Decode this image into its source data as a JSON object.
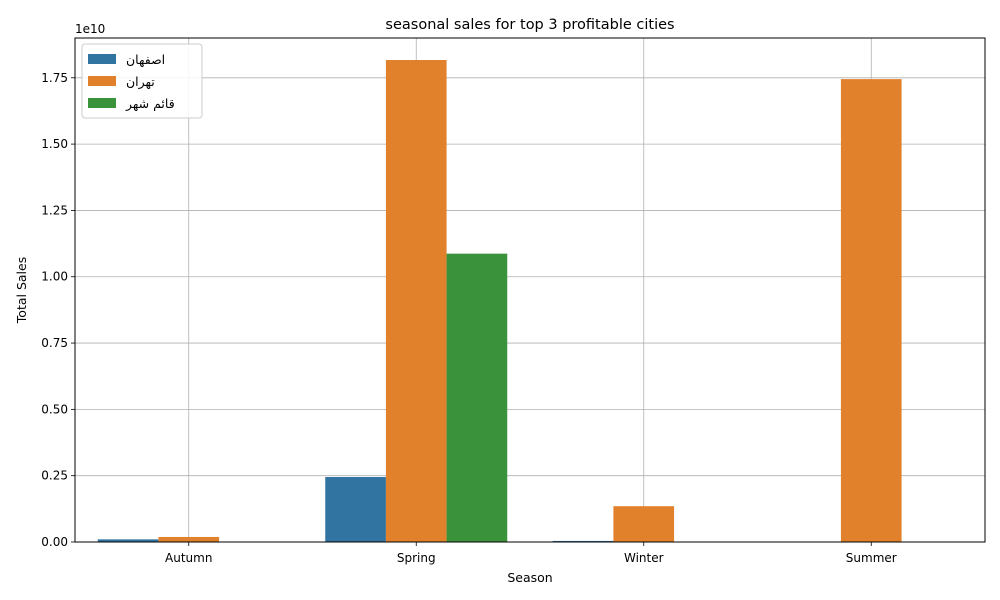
{
  "chart_data": {
    "type": "bar",
    "title": "seasonal sales for top 3 profitable cities",
    "xlabel": "Season",
    "ylabel": "Total Sales",
    "y_offset_label": "1e10",
    "y_multiplier": 10000000000,
    "categories": [
      "Autumn",
      "Spring",
      "Winter",
      "Summer"
    ],
    "series": [
      {
        "name": "اصفهان",
        "color": "#3274a1",
        "values": [
          0.01,
          0.245,
          0.004,
          0.0
        ]
      },
      {
        "name": "تهران",
        "color": "#e1812c",
        "values": [
          0.019,
          1.817,
          0.135,
          1.745
        ]
      },
      {
        "name": "قائم شهر",
        "color": "#3a923a",
        "values": [
          0.0,
          1.087,
          0.0,
          0.0
        ]
      }
    ],
    "ylim": [
      0,
      1.9
    ],
    "yticks": [
      "0.00",
      "0.25",
      "0.50",
      "0.75",
      "1.00",
      "1.25",
      "1.50",
      "1.75"
    ],
    "grid": true,
    "legend_position": "top-left"
  }
}
